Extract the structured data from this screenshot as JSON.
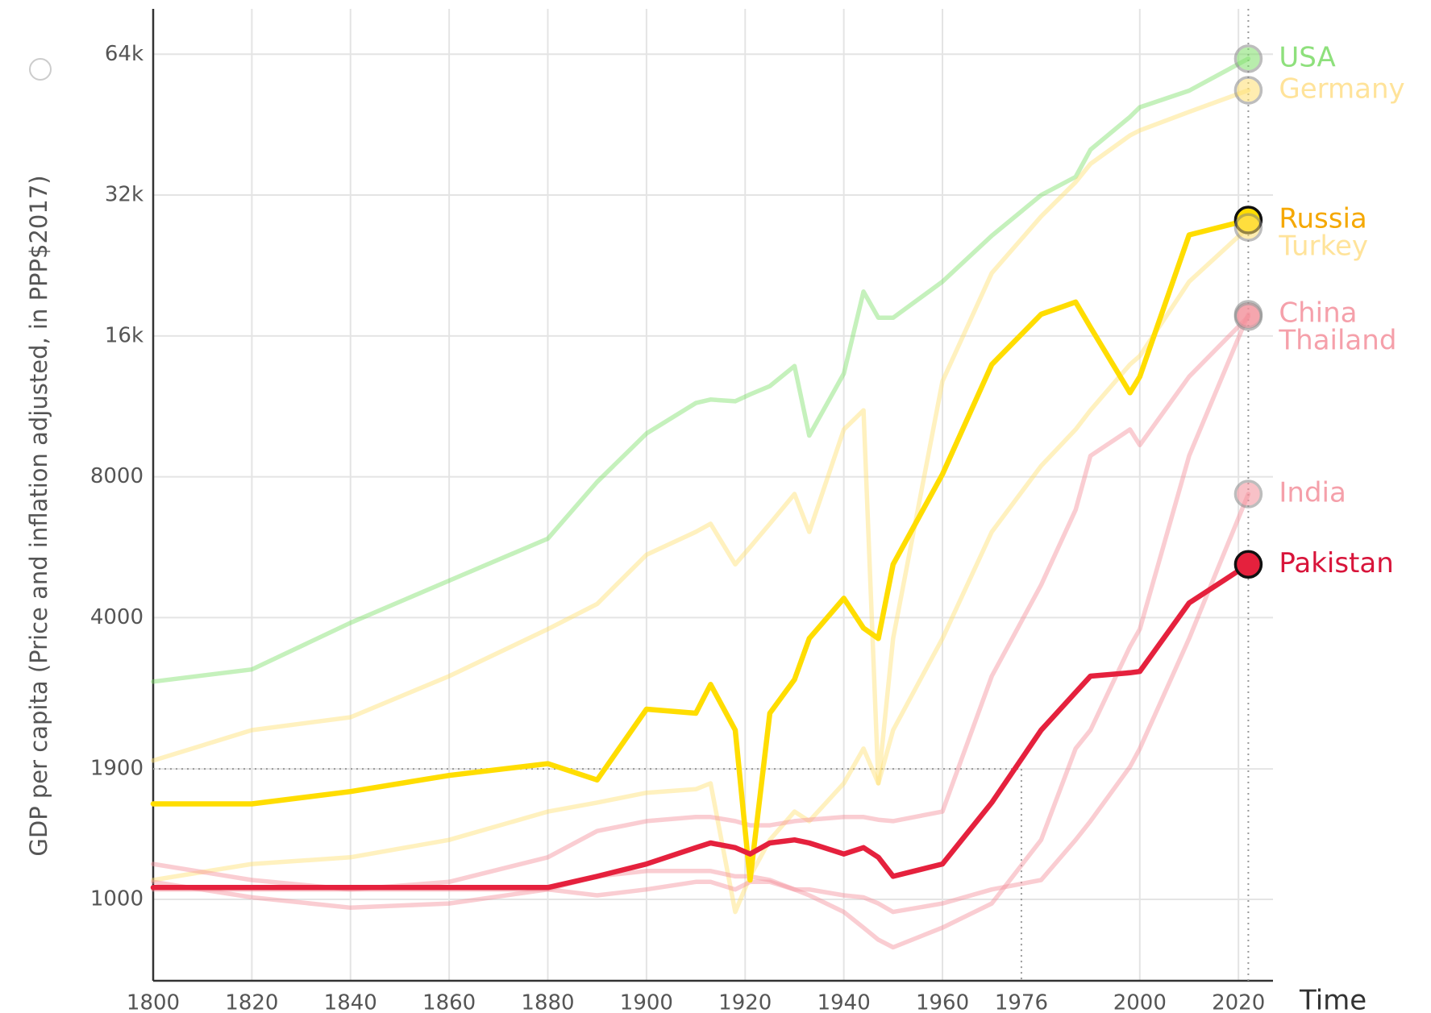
{
  "chart_data": {
    "type": "line",
    "y_label": "GDP per capita (Price and inflation adjusted, in PPP$2017)",
    "x_label": "Time",
    "log_y": true,
    "grid": true,
    "xlim": [
      1800,
      2027
    ],
    "ylim": [
      670,
      80000
    ],
    "xticks": [
      1800,
      1820,
      1840,
      1860,
      1880,
      1900,
      1920,
      1940,
      1960,
      1976,
      2000,
      2020
    ],
    "yticks": [
      1000,
      1900,
      4000,
      8000,
      {
        "value": 16000,
        "label": "16k"
      },
      {
        "value": 32000,
        "label": "32k"
      },
      {
        "value": 64000,
        "label": "64k"
      }
    ],
    "crosshair": {
      "x": 1976,
      "y": 1900
    },
    "current_x": 2022,
    "x": [
      1800,
      1820,
      1840,
      1860,
      1880,
      1890,
      1900,
      1910,
      1913,
      1918,
      1921,
      1925,
      1930,
      1933,
      1940,
      1944,
      1947,
      1950,
      1960,
      1970,
      1980,
      1987,
      1990,
      1998,
      2000,
      2010,
      2022
    ],
    "series": [
      {
        "name": "USA",
        "color": "#7fe06a",
        "label_color": "#8ee07c",
        "highlighted": false,
        "values": [
          2920,
          3100,
          3900,
          4800,
          5900,
          7800,
          9900,
          11500,
          11700,
          11600,
          12000,
          12500,
          13800,
          9800,
          13300,
          19900,
          17500,
          17500,
          20900,
          26200,
          32000,
          35000,
          40000,
          47000,
          49300,
          53500,
          62600
        ]
      },
      {
        "name": "Germany",
        "color": "#ffe070",
        "label_color": "#ffe39a",
        "highlighted": false,
        "values": [
          1980,
          2300,
          2450,
          3000,
          3780,
          4280,
          5450,
          6100,
          6350,
          5200,
          5660,
          6350,
          7350,
          6100,
          10100,
          11100,
          1770,
          3610,
          12800,
          21800,
          28800,
          34100,
          37300,
          42900,
          44000,
          48200,
          53600
        ]
      },
      {
        "name": "Turkey",
        "color": "#ffe070",
        "label_color": "#ffe39a",
        "highlighted": false,
        "values": [
          1100,
          1190,
          1230,
          1340,
          1540,
          1610,
          1690,
          1720,
          1770,
          940,
          1120,
          1340,
          1540,
          1470,
          1770,
          2100,
          1770,
          2300,
          3610,
          6100,
          8440,
          10100,
          11100,
          13900,
          14500,
          20900,
          27300
        ]
      },
      {
        "name": "Russia",
        "color": "#ffdd00",
        "label_color": "#f5a800",
        "highlighted": true,
        "values": [
          1600,
          1600,
          1700,
          1840,
          1950,
          1800,
          2550,
          2500,
          2880,
          2300,
          1100,
          2500,
          2950,
          3610,
          4400,
          3800,
          3610,
          5200,
          8100,
          13900,
          17800,
          18900,
          16700,
          12100,
          13100,
          26300,
          28300
        ]
      },
      {
        "name": "China",
        "color": "#f4909b",
        "label_color": "#f5a0aa",
        "highlighted": false,
        "values": [
          1090,
          1010,
          960,
          980,
          1050,
          1120,
          1150,
          1150,
          1150,
          1120,
          1120,
          1100,
          1050,
          1020,
          940,
          870,
          820,
          790,
          870,
          980,
          1340,
          2100,
          2300,
          3470,
          3780,
          8870,
          17800
        ]
      },
      {
        "name": "Thailand",
        "color": "#f4909b",
        "label_color": "#f5a0aa",
        "highlighted": false,
        "values": [
          1190,
          1100,
          1050,
          1090,
          1230,
          1400,
          1470,
          1500,
          1500,
          1470,
          1440,
          1440,
          1470,
          1480,
          1500,
          1500,
          1480,
          1470,
          1540,
          3000,
          4700,
          6800,
          8870,
          10100,
          9350,
          13100,
          17600
        ]
      },
      {
        "name": "India",
        "color": "#f4909b",
        "label_color": "#f5a0aa",
        "highlighted": false,
        "values": [
          1050,
          1050,
          1050,
          1050,
          1050,
          1020,
          1050,
          1090,
          1090,
          1050,
          1090,
          1090,
          1050,
          1050,
          1020,
          1010,
          980,
          940,
          980,
          1050,
          1100,
          1340,
          1470,
          1920,
          2100,
          3610,
          7350
        ]
      },
      {
        "name": "Pakistan",
        "color": "#e5213d",
        "label_color": "#d8143a",
        "highlighted": true,
        "values": [
          1060,
          1060,
          1060,
          1060,
          1060,
          1120,
          1190,
          1290,
          1320,
          1290,
          1250,
          1320,
          1340,
          1320,
          1250,
          1290,
          1230,
          1120,
          1190,
          1610,
          2300,
          2770,
          3000,
          3050,
          3070,
          4300,
          5200
        ]
      }
    ]
  }
}
